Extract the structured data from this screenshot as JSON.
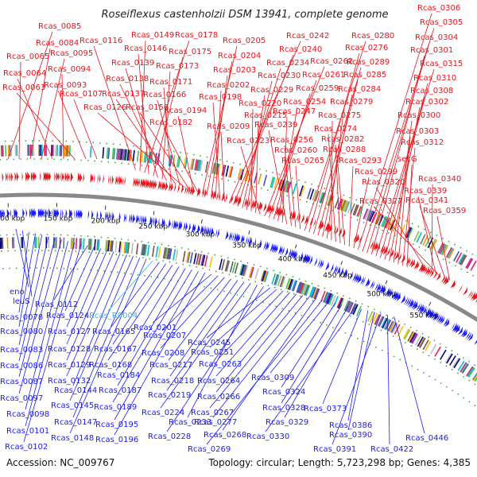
{
  "title": "Roseiflexus castenholzii DSM 13941, complete genome",
  "footer": {
    "accession": "Accession: NC_009767",
    "stats": "Topology: circular; Length: 5,723,298 bp; Genes: 4,385"
  },
  "colors": {
    "forward": "#e8141c",
    "reverse": "#1a1aff",
    "rna": "#33b7e6",
    "backbone": "#888888"
  },
  "kbp_ticks": [
    "100 kbp",
    "150 kbp",
    "200 kbp",
    "250 kbp",
    "300 kbp",
    "350 kbp",
    "400 kbp",
    "450 kbp",
    "500 kbp",
    "550 kbp"
  ],
  "forward_labels": [
    {
      "text": "Rcas_0085"
    },
    {
      "text": "Rcas_0065"
    },
    {
      "text": "Rcas_0084"
    },
    {
      "text": "Rcas_0095"
    },
    {
      "text": "Rcas_0064"
    },
    {
      "text": "Rcas_0094"
    },
    {
      "text": "Rcas_0063"
    },
    {
      "text": "Rcas_0093"
    },
    {
      "text": "Rcas_0107"
    },
    {
      "text": "Rcas_0116"
    },
    {
      "text": "Rcas_0149"
    },
    {
      "text": "Rcas_0178"
    },
    {
      "text": "Rcas_0146"
    },
    {
      "text": "Rcas_0175"
    },
    {
      "text": "Rcas_0139"
    },
    {
      "text": "Rcas_0173"
    },
    {
      "text": "Rcas_0138"
    },
    {
      "text": "Rcas_0171"
    },
    {
      "text": "Rcas_0137"
    },
    {
      "text": "Rcas_0166"
    },
    {
      "text": "Rcas_0126"
    },
    {
      "text": "Rcas_0156"
    },
    {
      "text": "Rcas_0194"
    },
    {
      "text": "Rcas_0182"
    },
    {
      "text": "Rcas_0205"
    },
    {
      "text": "Rcas_0204"
    },
    {
      "text": "Rcas_0203"
    },
    {
      "text": "Rcas_0202"
    },
    {
      "text": "Rcas_0198"
    },
    {
      "text": "Rcas_0209"
    },
    {
      "text": "Rcas_0242"
    },
    {
      "text": "Rcas_0240"
    },
    {
      "text": "Rcas_0234"
    },
    {
      "text": "Rcas_0230"
    },
    {
      "text": "Rcas_0229"
    },
    {
      "text": "Rcas_0220"
    },
    {
      "text": "Rcas_0215"
    },
    {
      "text": "Rcas_0223"
    },
    {
      "text": "Rcas_0262"
    },
    {
      "text": "Rcas_0261"
    },
    {
      "text": "Rcas_0259"
    },
    {
      "text": "Rcas_0254"
    },
    {
      "text": "Rcas_0247"
    },
    {
      "text": "Rcas_0239"
    },
    {
      "text": "Rcas_0256"
    },
    {
      "text": "Rcas_0260"
    },
    {
      "text": "Rcas_0265"
    },
    {
      "text": "Rcas_0280"
    },
    {
      "text": "Rcas_0276"
    },
    {
      "text": "Rcas_0289"
    },
    {
      "text": "Rcas_0285"
    },
    {
      "text": "Rcas_0284"
    },
    {
      "text": "Rcas_0279"
    },
    {
      "text": "Rcas_0275"
    },
    {
      "text": "Rcas_0274"
    },
    {
      "text": "Rcas_0282"
    },
    {
      "text": "Rcas_0288"
    },
    {
      "text": "Rcas_0293"
    },
    {
      "text": "Rcas_0299"
    },
    {
      "text": "Rcas_0306"
    },
    {
      "text": "Rcas_0305"
    },
    {
      "text": "Rcas_0304"
    },
    {
      "text": "Rcas_0301"
    },
    {
      "text": "Rcas_0315"
    },
    {
      "text": "Rcas_0310"
    },
    {
      "text": "Rcas_0308"
    },
    {
      "text": "Rcas_0302"
    },
    {
      "text": "Rcas_0300"
    },
    {
      "text": "Rcas_0303"
    },
    {
      "text": "Rcas_0312"
    },
    {
      "text": "secG"
    },
    {
      "text": "Rcas_0320"
    },
    {
      "text": "Rcas_0340"
    },
    {
      "text": "Rcas_0339"
    },
    {
      "text": "Rcas_0327"
    },
    {
      "text": "Rcas_0341"
    },
    {
      "text": "Rcas_0359"
    }
  ],
  "reverse_labels": [
    {
      "text": "eno"
    },
    {
      "text": "leuS"
    },
    {
      "text": "Rcas_0078"
    },
    {
      "text": "Rcas_0080"
    },
    {
      "text": "Rcas_0083"
    },
    {
      "text": "Rcas_0086"
    },
    {
      "text": "Rcas_0087"
    },
    {
      "text": "Rcas_0097"
    },
    {
      "text": "Rcas_0098"
    },
    {
      "text": "Rcas_0101"
    },
    {
      "text": "Rcas_0102"
    },
    {
      "text": "Rcas_0112"
    },
    {
      "text": "Rcas_0124"
    },
    {
      "text": "Rcas_0127"
    },
    {
      "text": "Rcas_0128"
    },
    {
      "text": "Rcas_0129"
    },
    {
      "text": "Rcas_0132"
    },
    {
      "text": "Rcas_0144"
    },
    {
      "text": "Rcas_0145"
    },
    {
      "text": "Rcas_0147"
    },
    {
      "text": "Rcas_0148"
    },
    {
      "text": "Rcas_R0004"
    },
    {
      "text": "Rcas_0165"
    },
    {
      "text": "Rcas_0167"
    },
    {
      "text": "Rcas_0168"
    },
    {
      "text": "Rcas_0184"
    },
    {
      "text": "Rcas_0187"
    },
    {
      "text": "Rcas_0189"
    },
    {
      "text": "Rcas_0195"
    },
    {
      "text": "Rcas_0196"
    },
    {
      "text": "Rcas_0201"
    },
    {
      "text": "Rcas_0207"
    },
    {
      "text": "Rcas_0208"
    },
    {
      "text": "Rcas_0217"
    },
    {
      "text": "Rcas_0218"
    },
    {
      "text": "Rcas_0219"
    },
    {
      "text": "Rcas_0224"
    },
    {
      "text": "Rcas_0233"
    },
    {
      "text": "Rcas_0228"
    },
    {
      "text": "Rcas_0245"
    },
    {
      "text": "Rcas_0251"
    },
    {
      "text": "Rcas_0263"
    },
    {
      "text": "Rcas_0264"
    },
    {
      "text": "Rcas_0266"
    },
    {
      "text": "Rcas_0267"
    },
    {
      "text": "Rcas_0277"
    },
    {
      "text": "Rcas_0268"
    },
    {
      "text": "Rcas_0269"
    },
    {
      "text": "Rcas_0309"
    },
    {
      "text": "Rcas_0324"
    },
    {
      "text": "Rcas_0328"
    },
    {
      "text": "Rcas_0329"
    },
    {
      "text": "Rcas_0330"
    },
    {
      "text": "Rcas_0373"
    },
    {
      "text": "Rcas_0386"
    },
    {
      "text": "Rcas_0390"
    },
    {
      "text": "Rcas_0391"
    },
    {
      "text": "Rcas_0422"
    },
    {
      "text": "Rcas_0446"
    }
  ]
}
